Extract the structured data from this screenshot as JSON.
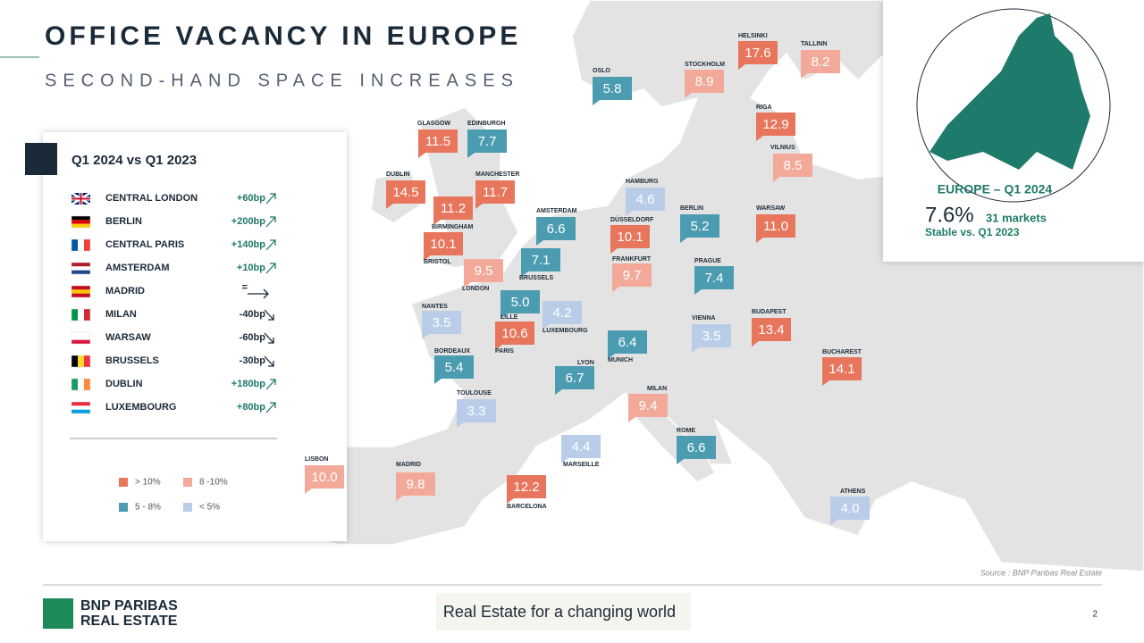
{
  "header": {
    "title": "OFFICE VACANCY IN EUROPE",
    "subtitle": "SECOND-HAND SPACE INCREASES"
  },
  "comparison": {
    "title": "Q1 2024 vs Q1 2023",
    "rows": [
      {
        "market": "CENTRAL LONDON",
        "change": "+60bp"
      },
      {
        "market": "BERLIN",
        "change": "+200bp"
      },
      {
        "market": "CENTRAL PARIS",
        "change": "+140bp"
      },
      {
        "market": "AMSTERDAM",
        "change": "+10bp"
      },
      {
        "market": "MADRID",
        "change": "="
      },
      {
        "market": "MILAN",
        "change": "-40bp"
      },
      {
        "market": "WARSAW",
        "change": "-60bp"
      },
      {
        "market": "BRUSSELS",
        "change": "-30bp"
      },
      {
        "market": "DUBLIN",
        "change": "+180bp"
      },
      {
        "market": "LUXEMBOURG",
        "change": "+80bp"
      }
    ]
  },
  "legend": [
    {
      "label": "> 10%",
      "color": "#e8765c"
    },
    {
      "label": "8 -10%",
      "color": "#f2a99a"
    },
    {
      "label": "5 - 8%",
      "color": "#4b9bb1"
    },
    {
      "label": "< 5%",
      "color": "#b9cde9"
    }
  ],
  "cities": [
    {
      "name": "HELSINKI",
      "value": "17.6",
      "color": "#e8765c"
    },
    {
      "name": "TALLINN",
      "value": "8.2",
      "color": "#f2a99a"
    },
    {
      "name": "STOCKHOLM",
      "value": "8.9",
      "color": "#f2a99a"
    },
    {
      "name": "OSLO",
      "value": "5.8",
      "color": "#4b9bb1"
    },
    {
      "name": "RIGA",
      "value": "12.9",
      "color": "#e8765c"
    },
    {
      "name": "VILNIUS",
      "value": "8.5",
      "color": "#f2a99a"
    },
    {
      "name": "GLASGOW",
      "value": "11.5",
      "color": "#e8765c"
    },
    {
      "name": "EDINBURGH",
      "value": "7.7",
      "color": "#4b9bb1"
    },
    {
      "name": "DUBLIN",
      "value": "14.5",
      "color": "#e8765c"
    },
    {
      "name": "MANCHESTER",
      "value": "11.7",
      "color": "#e8765c"
    },
    {
      "name": "BIRMINGHAM",
      "value": "11.2",
      "color": "#e8765c"
    },
    {
      "name": "BRISTOL",
      "value": "10.1",
      "color": "#e8765c"
    },
    {
      "name": "LONDON",
      "value": "9.5",
      "color": "#f2a99a"
    },
    {
      "name": "AMSTERDAM",
      "value": "6.6",
      "color": "#4b9bb1"
    },
    {
      "name": "BRUSSELS",
      "value": "7.1",
      "color": "#4b9bb1"
    },
    {
      "name": "LILLE",
      "value": "5.0",
      "color": "#4b9bb1"
    },
    {
      "name": "LUXEMBOURG",
      "value": "4.2",
      "color": "#b9cde9"
    },
    {
      "name": "PARIS",
      "value": "10.6",
      "color": "#e8765c"
    },
    {
      "name": "HAMBURG",
      "value": "4.6",
      "color": "#b9cde9"
    },
    {
      "name": "DÜSSELDORF",
      "value": "10.1",
      "color": "#e8765c"
    },
    {
      "name": "FRANKFURT",
      "value": "9.7",
      "color": "#f2a99a"
    },
    {
      "name": "BERLIN",
      "value": "5.2",
      "color": "#4b9bb1"
    },
    {
      "name": "WARSAW",
      "value": "11.0",
      "color": "#e8765c"
    },
    {
      "name": "PRAGUE",
      "value": "7.4",
      "color": "#4b9bb1"
    },
    {
      "name": "VIENNA",
      "value": "3.5",
      "color": "#b9cde9"
    },
    {
      "name": "BUDAPEST",
      "value": "13.4",
      "color": "#e8765c"
    },
    {
      "name": "BUCHAREST",
      "value": "14.1",
      "color": "#e8765c"
    },
    {
      "name": "MUNICH",
      "value": "6.4",
      "color": "#4b9bb1"
    },
    {
      "name": "NANTES",
      "value": "3.5",
      "color": "#b9cde9"
    },
    {
      "name": "BORDEAUX",
      "value": "5.4",
      "color": "#4b9bb1"
    },
    {
      "name": "LYON",
      "value": "6.7",
      "color": "#4b9bb1"
    },
    {
      "name": "TOULOUSE",
      "value": "3.3",
      "color": "#b9cde9"
    },
    {
      "name": "MILAN",
      "value": "9.4",
      "color": "#f2a99a"
    },
    {
      "name": "MARSEILLE",
      "value": "4.4",
      "color": "#b9cde9"
    },
    {
      "name": "ROME",
      "value": "6.6",
      "color": "#4b9bb1"
    },
    {
      "name": "LISBON",
      "value": "10.0",
      "color": "#f2a99a"
    },
    {
      "name": "MADRID",
      "value": "9.8",
      "color": "#f2a99a"
    },
    {
      "name": "BARCELONA",
      "value": "12.2",
      "color": "#e8765c"
    },
    {
      "name": "ATHENS",
      "value": "4.0",
      "color": "#b9cde9"
    }
  ],
  "europe": {
    "title": "EUROPE – Q1 2024",
    "value": "7.6%",
    "markets": "31 markets",
    "note": "Stable vs. Q1 2023"
  },
  "footer": {
    "source": "Source : BNP Paribas Real Estate",
    "brand_line1": "BNP PARIBAS",
    "brand_line2": "REAL ESTATE",
    "tagline": "Real Estate for a changing world",
    "page": "2"
  }
}
